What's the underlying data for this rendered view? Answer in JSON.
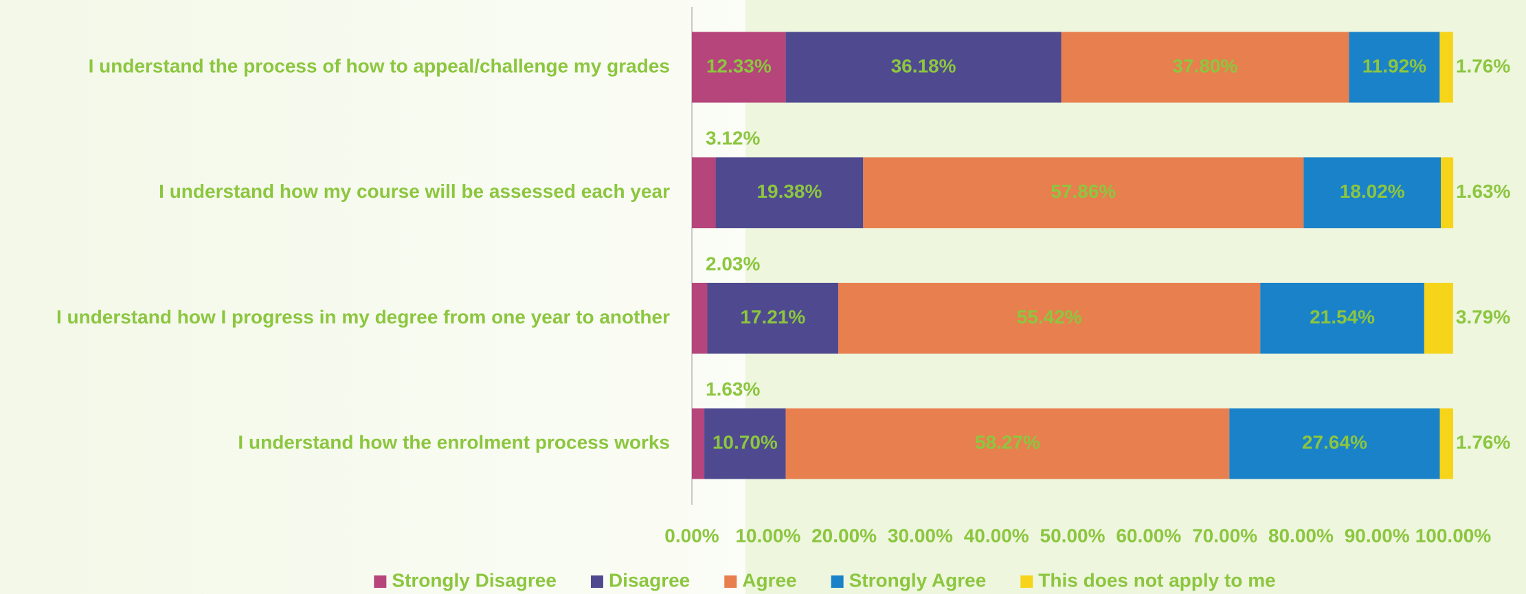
{
  "chart_data": {
    "type": "hbar_stacked",
    "categories": [
      "I understand the process of how to appeal/challenge my grades",
      "I understand how my course will be assessed each year",
      "I understand how I progress in my degree from one year to another",
      "I understand how the enrolment process works"
    ],
    "series": [
      {
        "name": "Strongly Disagree",
        "color": "#b5457a",
        "values": [
          12.33,
          3.12,
          2.03,
          1.63
        ],
        "value_labels": [
          "12.33%",
          "3.12%",
          "2.03%",
          "1.63%"
        ]
      },
      {
        "name": "Disagree",
        "color": "#4f4a8f",
        "values": [
          36.18,
          19.38,
          17.21,
          10.7
        ],
        "value_labels": [
          "36.18%",
          "19.38%",
          "17.21%",
          "10.70%"
        ]
      },
      {
        "name": "Agree",
        "color": "#e87f4f",
        "values": [
          37.8,
          57.86,
          55.42,
          58.27
        ],
        "value_labels": [
          "37.80%",
          "57.86%",
          "55.42%",
          "58.27%"
        ]
      },
      {
        "name": "Strongly Agree",
        "color": "#1a82c8",
        "values": [
          11.92,
          18.02,
          21.54,
          27.64
        ],
        "value_labels": [
          "11.92%",
          "18.02%",
          "21.54%",
          "27.64%"
        ]
      },
      {
        "name": "This does not apply to me",
        "color": "#f6d419",
        "values": [
          1.76,
          1.63,
          3.79,
          1.76
        ],
        "value_labels": [
          "1.76%",
          "1.63%",
          "3.79%",
          "1.76%"
        ]
      }
    ],
    "xlim": [
      0,
      100
    ],
    "xticks": [
      {
        "value": 0,
        "label": "0.00%"
      },
      {
        "value": 10,
        "label": "10.00%"
      },
      {
        "value": 20,
        "label": "20.00%"
      },
      {
        "value": 30,
        "label": "30.00%"
      },
      {
        "value": 40,
        "label": "40.00%"
      },
      {
        "value": 50,
        "label": "50.00%"
      },
      {
        "value": 60,
        "label": "60.00%"
      },
      {
        "value": 70,
        "label": "70.00%"
      },
      {
        "value": 80,
        "label": "80.00%"
      },
      {
        "value": 90,
        "label": "90.00%"
      },
      {
        "value": 100,
        "label": "100.00%"
      }
    ],
    "legend": "bottom"
  }
}
